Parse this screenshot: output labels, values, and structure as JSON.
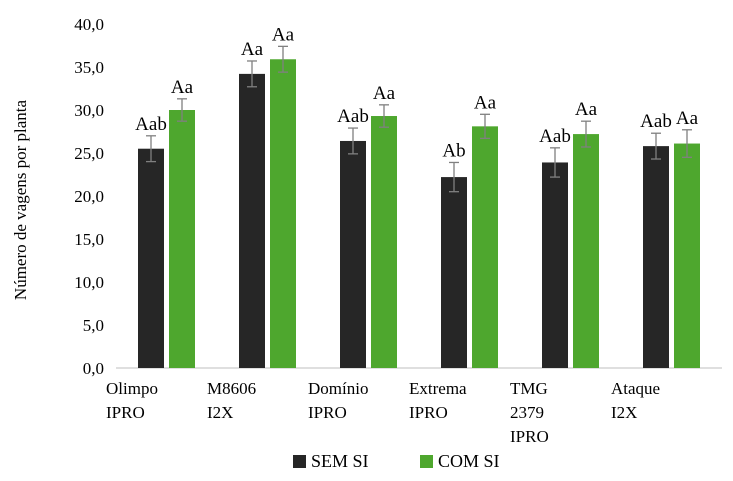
{
  "chart_data": {
    "type": "bar",
    "ylabel": "Número de vagens por planta",
    "ylim": [
      0,
      40
    ],
    "yticks": [
      "0,0",
      "5,0",
      "10,0",
      "15,0",
      "20,0",
      "25,0",
      "30,0",
      "35,0",
      "40,0"
    ],
    "grid": false,
    "legend_position": "bottom",
    "categories": [
      [
        "Olimpo",
        "IPRO"
      ],
      [
        "M8606",
        "I2X"
      ],
      [
        "Domínio",
        "IPRO"
      ],
      [
        "Extrema",
        "IPRO"
      ],
      [
        "TMG",
        "2379",
        "IPRO"
      ],
      [
        "Ataque",
        "I2X"
      ]
    ],
    "series": [
      {
        "name": "SEM SI",
        "color": "#262626",
        "values": [
          25.5,
          34.2,
          26.4,
          22.2,
          23.9,
          25.8
        ],
        "error": [
          1.5,
          1.5,
          1.5,
          1.7,
          1.7,
          1.5
        ],
        "labels": [
          "Aab",
          "Aa",
          "Aab",
          "Ab",
          "Aab",
          "Aab"
        ]
      },
      {
        "name": "COM SI",
        "color": "#4ea72e",
        "values": [
          30.0,
          35.9,
          29.3,
          28.1,
          27.2,
          26.1
        ],
        "error": [
          1.3,
          1.5,
          1.3,
          1.4,
          1.5,
          1.6
        ],
        "labels": [
          "Aa",
          "Aa",
          "Aa",
          "Aa",
          "Aa",
          "Aa"
        ]
      }
    ]
  }
}
